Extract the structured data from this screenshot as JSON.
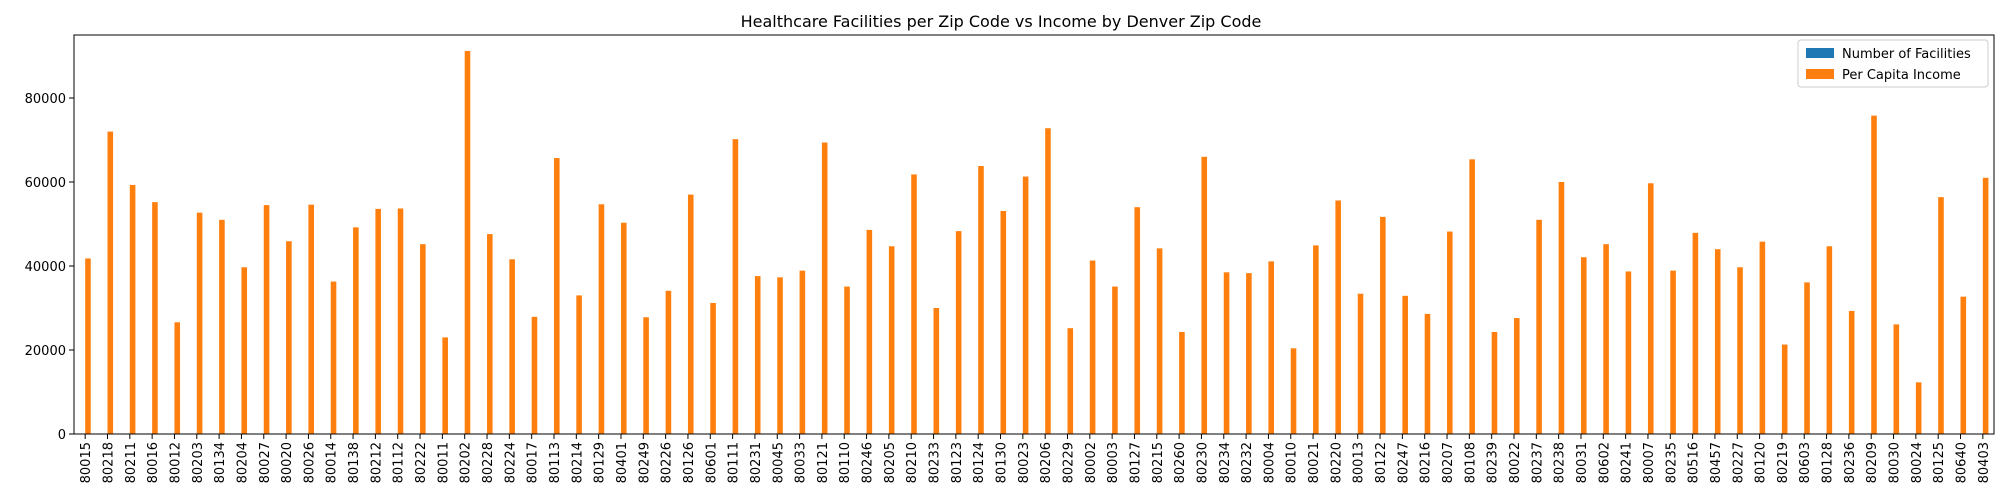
{
  "chart_data": {
    "type": "bar",
    "title": "Healthcare Facilities per Zip Code vs Income by Denver Zip Code",
    "xlabel": "",
    "ylabel": "",
    "ylim": [
      0,
      95000
    ],
    "yticks": [
      0,
      20000,
      40000,
      60000,
      80000
    ],
    "grid": false,
    "legend_position": "top-right",
    "categories": [
      "80015",
      "80218",
      "80211",
      "80016",
      "80012",
      "80203",
      "80134",
      "80204",
      "80027",
      "80020",
      "80026",
      "80014",
      "80138",
      "80212",
      "80112",
      "80222",
      "80011",
      "80202",
      "80228",
      "80224",
      "80017",
      "80113",
      "80214",
      "80129",
      "80401",
      "80249",
      "80226",
      "80126",
      "80601",
      "80111",
      "80231",
      "80045",
      "80033",
      "80121",
      "80110",
      "80246",
      "80205",
      "80210",
      "80233",
      "80123",
      "80124",
      "80130",
      "80023",
      "80206",
      "80229",
      "80002",
      "80003",
      "80127",
      "80215",
      "80260",
      "80230",
      "80234",
      "80232",
      "80004",
      "80010",
      "80021",
      "80220",
      "80013",
      "80122",
      "80247",
      "80216",
      "80207",
      "80108",
      "80239",
      "80022",
      "80237",
      "80238",
      "80031",
      "80602",
      "80241",
      "80007",
      "80235",
      "80516",
      "80457",
      "80227",
      "80120",
      "80219",
      "80603",
      "80128",
      "80236",
      "80209",
      "80030",
      "80024",
      "80125",
      "80640",
      "80403"
    ],
    "series": [
      {
        "name": "Number of Facilities",
        "color": "#1f77b4",
        "values": [
          1,
          1,
          1,
          1,
          1,
          1,
          1,
          1,
          1,
          1,
          1,
          1,
          1,
          1,
          1,
          1,
          1,
          1,
          1,
          1,
          1,
          1,
          1,
          1,
          1,
          1,
          1,
          1,
          1,
          1,
          1,
          1,
          1,
          1,
          1,
          1,
          1,
          1,
          1,
          1,
          1,
          1,
          1,
          1,
          1,
          1,
          1,
          1,
          1,
          1,
          1,
          1,
          1,
          1,
          1,
          1,
          1,
          1,
          1,
          1,
          1,
          1,
          1,
          1,
          1,
          1,
          1,
          1,
          1,
          1,
          1,
          1,
          1,
          1,
          1,
          1,
          1,
          1,
          1,
          1,
          1,
          1,
          1,
          1,
          1,
          1
        ]
      },
      {
        "name": "Per Capita Income",
        "color": "#ff7f0e",
        "values": [
          41800,
          72000,
          59300,
          55200,
          26600,
          52700,
          51000,
          39700,
          54500,
          45900,
          54600,
          36300,
          49200,
          53600,
          53700,
          45200,
          23000,
          91200,
          47600,
          41600,
          27900,
          65700,
          33000,
          54700,
          50300,
          27800,
          34100,
          57000,
          31200,
          70200,
          37600,
          37300,
          38900,
          69400,
          35100,
          48600,
          44700,
          61800,
          30000,
          48300,
          63800,
          53100,
          61300,
          72800,
          25200,
          41300,
          35100,
          54000,
          44200,
          24300,
          66000,
          38500,
          38300,
          41100,
          20400,
          44900,
          55600,
          33400,
          51700,
          32900,
          28600,
          48200,
          65400,
          24300,
          27600,
          51000,
          60000,
          42100,
          45200,
          38700,
          59700,
          38900,
          47900,
          44000,
          39700,
          45800,
          21300,
          36100,
          44700,
          29300,
          75800,
          26100,
          12300,
          56400,
          32700,
          61000
        ]
      }
    ]
  }
}
